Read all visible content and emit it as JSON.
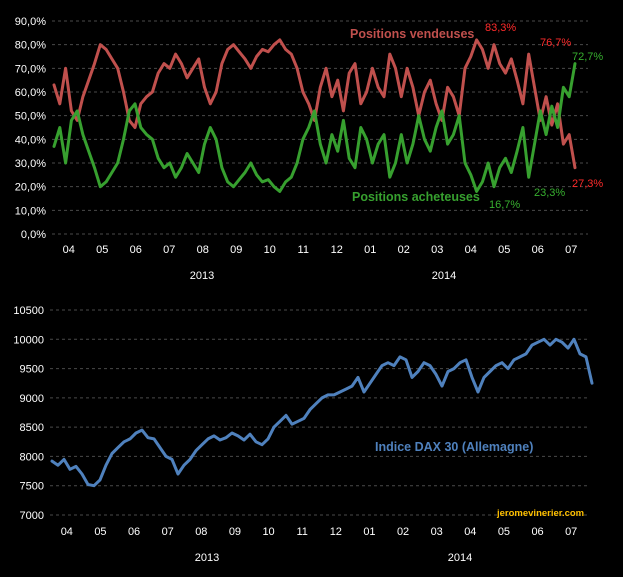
{
  "chart_data": [
    {
      "type": "line",
      "title": "",
      "xlabel": "",
      "ylabel": "",
      "ylim": [
        0,
        90
      ],
      "yticks": [
        "0,0%",
        "10,0%",
        "20,0%",
        "30,0%",
        "40,0%",
        "50,0%",
        "60,0%",
        "70,0%",
        "80,0%",
        "90,0%"
      ],
      "grid": true,
      "month_labels": [
        "04",
        "05",
        "06",
        "07",
        "08",
        "09",
        "10",
        "11",
        "12",
        "01",
        "02",
        "03",
        "04",
        "05",
        "06",
        "07"
      ],
      "year_labels": [
        "2013",
        "2014"
      ],
      "series": [
        {
          "name": "Positions vendeuses",
          "color": "#c0504d",
          "values": [
            63,
            55,
            70,
            52,
            48,
            58,
            65,
            72,
            80,
            78,
            74,
            70,
            60,
            48,
            45,
            55,
            58,
            60,
            68,
            72,
            70,
            76,
            72,
            66,
            70,
            74,
            62,
            55,
            60,
            72,
            78,
            80,
            77,
            74,
            70,
            75,
            78,
            77,
            80,
            82,
            78,
            76,
            70,
            60,
            55,
            48,
            62,
            70,
            58,
            65,
            52,
            68,
            72,
            55,
            60,
            70,
            62,
            58,
            76,
            70,
            58,
            70,
            62,
            50,
            60,
            65,
            55,
            48,
            62,
            58,
            50,
            70,
            75,
            82,
            78,
            70,
            80,
            72,
            68,
            74,
            65,
            55,
            76,
            62,
            48,
            58,
            46,
            55,
            38,
            42,
            28
          ]
        },
        {
          "name": "Positions acheteuses",
          "color": "#37a02f",
          "values": [
            37,
            45,
            30,
            48,
            52,
            42,
            35,
            28,
            20,
            22,
            26,
            30,
            40,
            52,
            55,
            45,
            42,
            40,
            32,
            28,
            30,
            24,
            28,
            34,
            30,
            26,
            38,
            45,
            40,
            28,
            22,
            20,
            23,
            26,
            30,
            25,
            22,
            23,
            20,
            18,
            22,
            24,
            30,
            40,
            45,
            52,
            38,
            30,
            42,
            35,
            48,
            32,
            28,
            45,
            40,
            30,
            38,
            42,
            24,
            30,
            42,
            30,
            38,
            50,
            40,
            35,
            45,
            52,
            38,
            42,
            50,
            30,
            25,
            18,
            22,
            30,
            20,
            28,
            32,
            26,
            35,
            45,
            24,
            38,
            52,
            42,
            54,
            45,
            62,
            58,
            72
          ]
        }
      ],
      "annotations": [
        {
          "text": "83,3%",
          "color": "#ff2b2b"
        },
        {
          "text": "76,7%",
          "color": "#ff2b2b"
        },
        {
          "text": "72,7%",
          "color": "#37b02f"
        },
        {
          "text": "27,3%",
          "color": "#ff2b2b"
        },
        {
          "text": "16,7%",
          "color": "#37b02f"
        },
        {
          "text": "23,3%",
          "color": "#37b02f"
        }
      ]
    },
    {
      "type": "line",
      "title": "",
      "xlabel": "",
      "ylabel": "",
      "ylim": [
        7000,
        10500
      ],
      "yticks": [
        "7000",
        "7500",
        "8000",
        "8500",
        "9000",
        "9500",
        "10000",
        "10500"
      ],
      "grid": true,
      "month_labels": [
        "04",
        "05",
        "06",
        "07",
        "08",
        "09",
        "10",
        "11",
        "12",
        "01",
        "02",
        "03",
        "04",
        "05",
        "06",
        "07"
      ],
      "year_labels": [
        "2013",
        "2014"
      ],
      "series": [
        {
          "name": "Indice DAX 30 (Allemagne)",
          "color": "#4f81bd",
          "values": [
            7920,
            7850,
            7950,
            7780,
            7830,
            7700,
            7520,
            7500,
            7600,
            7850,
            8050,
            8150,
            8250,
            8300,
            8400,
            8450,
            8320,
            8300,
            8150,
            8000,
            7950,
            7700,
            7850,
            7950,
            8100,
            8200,
            8300,
            8350,
            8280,
            8320,
            8400,
            8350,
            8280,
            8380,
            8250,
            8200,
            8300,
            8500,
            8600,
            8700,
            8550,
            8600,
            8650,
            8800,
            8900,
            9000,
            9050,
            9050,
            9100,
            9150,
            9200,
            9350,
            9100,
            9250,
            9400,
            9550,
            9600,
            9550,
            9700,
            9650,
            9350,
            9450,
            9600,
            9550,
            9400,
            9200,
            9450,
            9500,
            9600,
            9650,
            9350,
            9100,
            9350,
            9450,
            9550,
            9600,
            9500,
            9650,
            9700,
            9750,
            9900,
            9950,
            10000,
            9900,
            10000,
            9950,
            9850,
            10000,
            9750,
            9700,
            9250
          ]
        }
      ],
      "watermark": "jeromevinerier.com"
    }
  ]
}
